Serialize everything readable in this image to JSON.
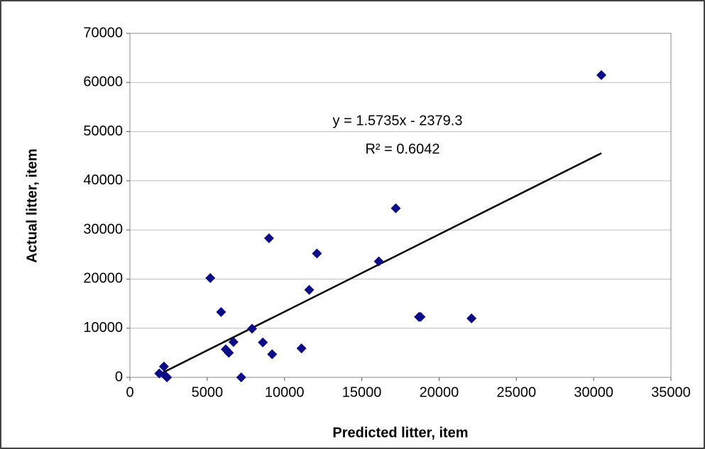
{
  "chart_data": {
    "type": "scatter",
    "xlabel": "Predicted litter, item",
    "ylabel": "Actual litter, item",
    "annotations": [
      "y = 1.5735x - 2379.3",
      "R² = 0.6042"
    ],
    "series": [
      {
        "color": "#0c0c86",
        "x": [
          1900,
          2200,
          2300,
          2400,
          5200,
          5900,
          6200,
          6400,
          6700,
          7200,
          7900,
          8600,
          9000,
          9200,
          11100,
          11600,
          12100,
          16100,
          17200,
          18700,
          18800,
          22100,
          30500
        ],
        "values": [
          800,
          2200,
          300,
          0,
          20200,
          13300,
          5700,
          5000,
          7200,
          0,
          9900,
          7100,
          28300,
          4700,
          5900,
          17800,
          25200,
          23600,
          34400,
          12300,
          12300,
          12000,
          61500
        ]
      }
    ],
    "trendline": {
      "slope": 1.5735,
      "intercept": -2379.3,
      "color": "#000000"
    },
    "xlim": [
      0,
      35000
    ],
    "xticks": [
      0,
      5000,
      10000,
      15000,
      20000,
      25000,
      30000,
      35000
    ],
    "ylim": [
      0,
      70000
    ],
    "yticks": [
      0,
      10000,
      20000,
      30000,
      40000,
      50000,
      60000,
      70000
    ],
    "grid": true
  }
}
